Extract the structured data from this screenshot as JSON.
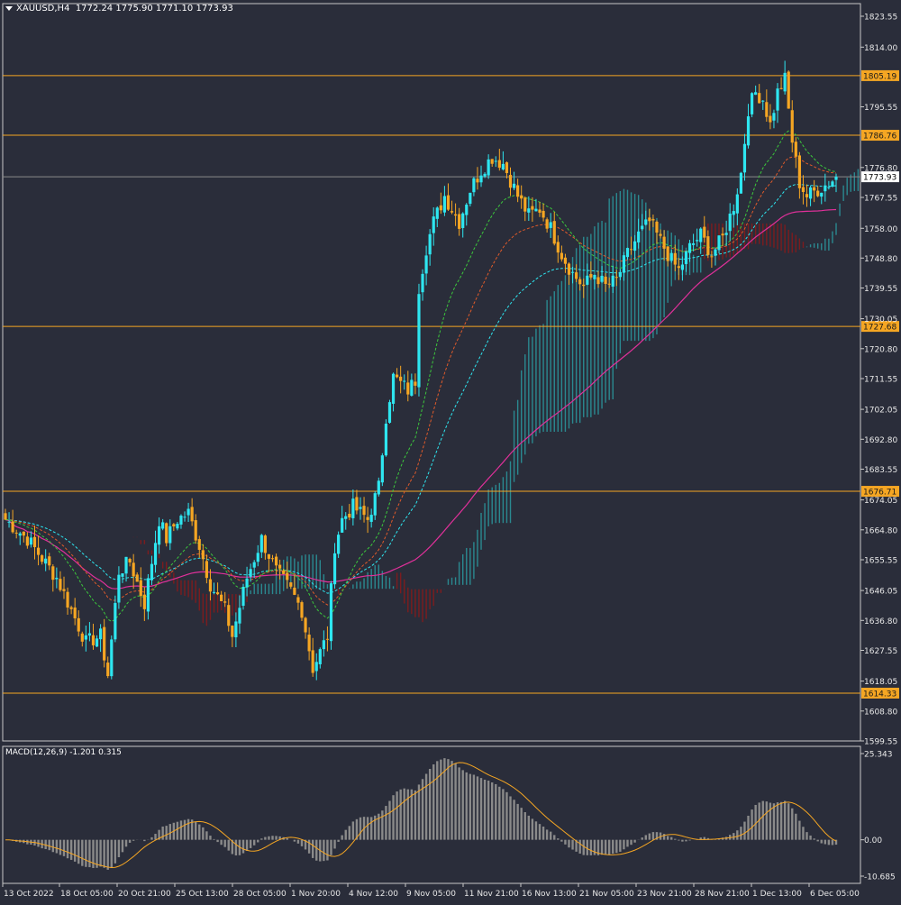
{
  "header": {
    "symbol": "XAUUSD,H4",
    "open": "1772.24",
    "high": "1775.90",
    "low": "1771.10",
    "close": "1773.93"
  },
  "macd_header": {
    "label": "MACD(12,26,9)",
    "main": "-1.201",
    "signal": "0.315"
  },
  "price_scale": {
    "ticks": [
      "1823.55",
      "1814.00",
      "1795.55",
      "1776.80",
      "1767.55",
      "1758.00",
      "1748.80",
      "1739.55",
      "1730.05",
      "1720.80",
      "1711.55",
      "1702.05",
      "1692.80",
      "1683.55",
      "1674.05",
      "1664.80",
      "1655.55",
      "1646.05",
      "1636.80",
      "1627.55",
      "1618.05",
      "1608.80",
      "1599.55"
    ],
    "current_price": "1773.93"
  },
  "levels": [
    {
      "label": "1805.19",
      "value": 1805.19
    },
    {
      "label": "1786.76",
      "value": 1786.76
    },
    {
      "label": "1727.68",
      "value": 1727.68
    },
    {
      "label": "1676.71",
      "value": 1676.71
    },
    {
      "label": "1614.33",
      "value": 1614.33
    }
  ],
  "macd_scale": {
    "ticks": [
      "25.343",
      "0.00",
      "-10.685"
    ]
  },
  "time_axis": {
    "labels": [
      "13 Oct 2022",
      "18 Oct 05:00",
      "20 Oct 21:00",
      "25 Oct 13:00",
      "28 Oct 05:00",
      "1 Nov 20:00",
      "4 Nov 12:00",
      "9 Nov 05:00",
      "11 Nov 21:00",
      "16 Nov 13:00",
      "21 Nov 05:00",
      "23 Nov 21:00",
      "28 Nov 21:00",
      "1 Dec 13:00",
      "6 Dec 05:00"
    ]
  },
  "colors": {
    "background": "#2a2d3a",
    "bull_candle": "#2ee6f0",
    "bear_candle": "#f5a623",
    "level_line": "#f5a623",
    "cloud_bull": "#2a9aa0",
    "cloud_bear": "#8b1a1a",
    "ma_pink": "#e0309a",
    "tenkan": "#3cc83c",
    "kijun": "#e05a2a",
    "chikou": "#2ee6f0",
    "macd_hist": "#8a8a8a",
    "macd_signal": "#f5a623"
  },
  "chart_data": {
    "type": "candlestick",
    "symbol": "XAUUSD,H4",
    "ylim": [
      1599.55,
      1823.55
    ],
    "anchors": [
      [
        0,
        1668
      ],
      [
        6,
        1662
      ],
      [
        10,
        1656
      ],
      [
        14,
        1650
      ],
      [
        18,
        1640
      ],
      [
        22,
        1630
      ],
      [
        26,
        1632
      ],
      [
        28,
        1620
      ],
      [
        31,
        1652
      ],
      [
        34,
        1655
      ],
      [
        38,
        1642
      ],
      [
        42,
        1668
      ],
      [
        44,
        1662
      ],
      [
        47,
        1668
      ],
      [
        50,
        1670
      ],
      [
        53,
        1660
      ],
      [
        56,
        1648
      ],
      [
        60,
        1640
      ],
      [
        62,
        1632
      ],
      [
        66,
        1650
      ],
      [
        70,
        1662
      ],
      [
        74,
        1652
      ],
      [
        78,
        1646
      ],
      [
        81,
        1640
      ],
      [
        84,
        1622
      ],
      [
        88,
        1632
      ],
      [
        90,
        1660
      ],
      [
        92,
        1668
      ],
      [
        95,
        1672
      ],
      [
        99,
        1668
      ],
      [
        102,
        1678
      ],
      [
        104,
        1700
      ],
      [
        106,
        1712
      ],
      [
        108,
        1710
      ],
      [
        110,
        1708
      ],
      [
        112,
        1711
      ],
      [
        113,
        1740
      ],
      [
        115,
        1752
      ],
      [
        117,
        1760
      ],
      [
        120,
        1768
      ],
      [
        124,
        1760
      ],
      [
        127,
        1770
      ],
      [
        130,
        1776
      ],
      [
        133,
        1780
      ],
      [
        136,
        1778
      ],
      [
        140,
        1768
      ],
      [
        143,
        1762
      ],
      [
        146,
        1764
      ],
      [
        149,
        1758
      ],
      [
        152,
        1750
      ],
      [
        155,
        1744
      ],
      [
        158,
        1740
      ],
      [
        161,
        1744
      ],
      [
        164,
        1740
      ],
      [
        167,
        1742
      ],
      [
        170,
        1750
      ],
      [
        173,
        1756
      ],
      [
        176,
        1760
      ],
      [
        179,
        1754
      ],
      [
        182,
        1748
      ],
      [
        184,
        1745
      ],
      [
        187,
        1752
      ],
      [
        190,
        1756
      ],
      [
        193,
        1750
      ],
      [
        196,
        1755
      ],
      [
        199,
        1765
      ],
      [
        201,
        1775
      ],
      [
        203,
        1795
      ],
      [
        205,
        1800
      ],
      [
        207,
        1798
      ],
      [
        209,
        1790
      ],
      [
        211,
        1800
      ],
      [
        213,
        1804
      ],
      [
        215,
        1785
      ],
      [
        217,
        1772
      ],
      [
        219,
        1768
      ],
      [
        222,
        1770
      ],
      [
        225,
        1772
      ],
      [
        227,
        1773.93
      ]
    ]
  }
}
